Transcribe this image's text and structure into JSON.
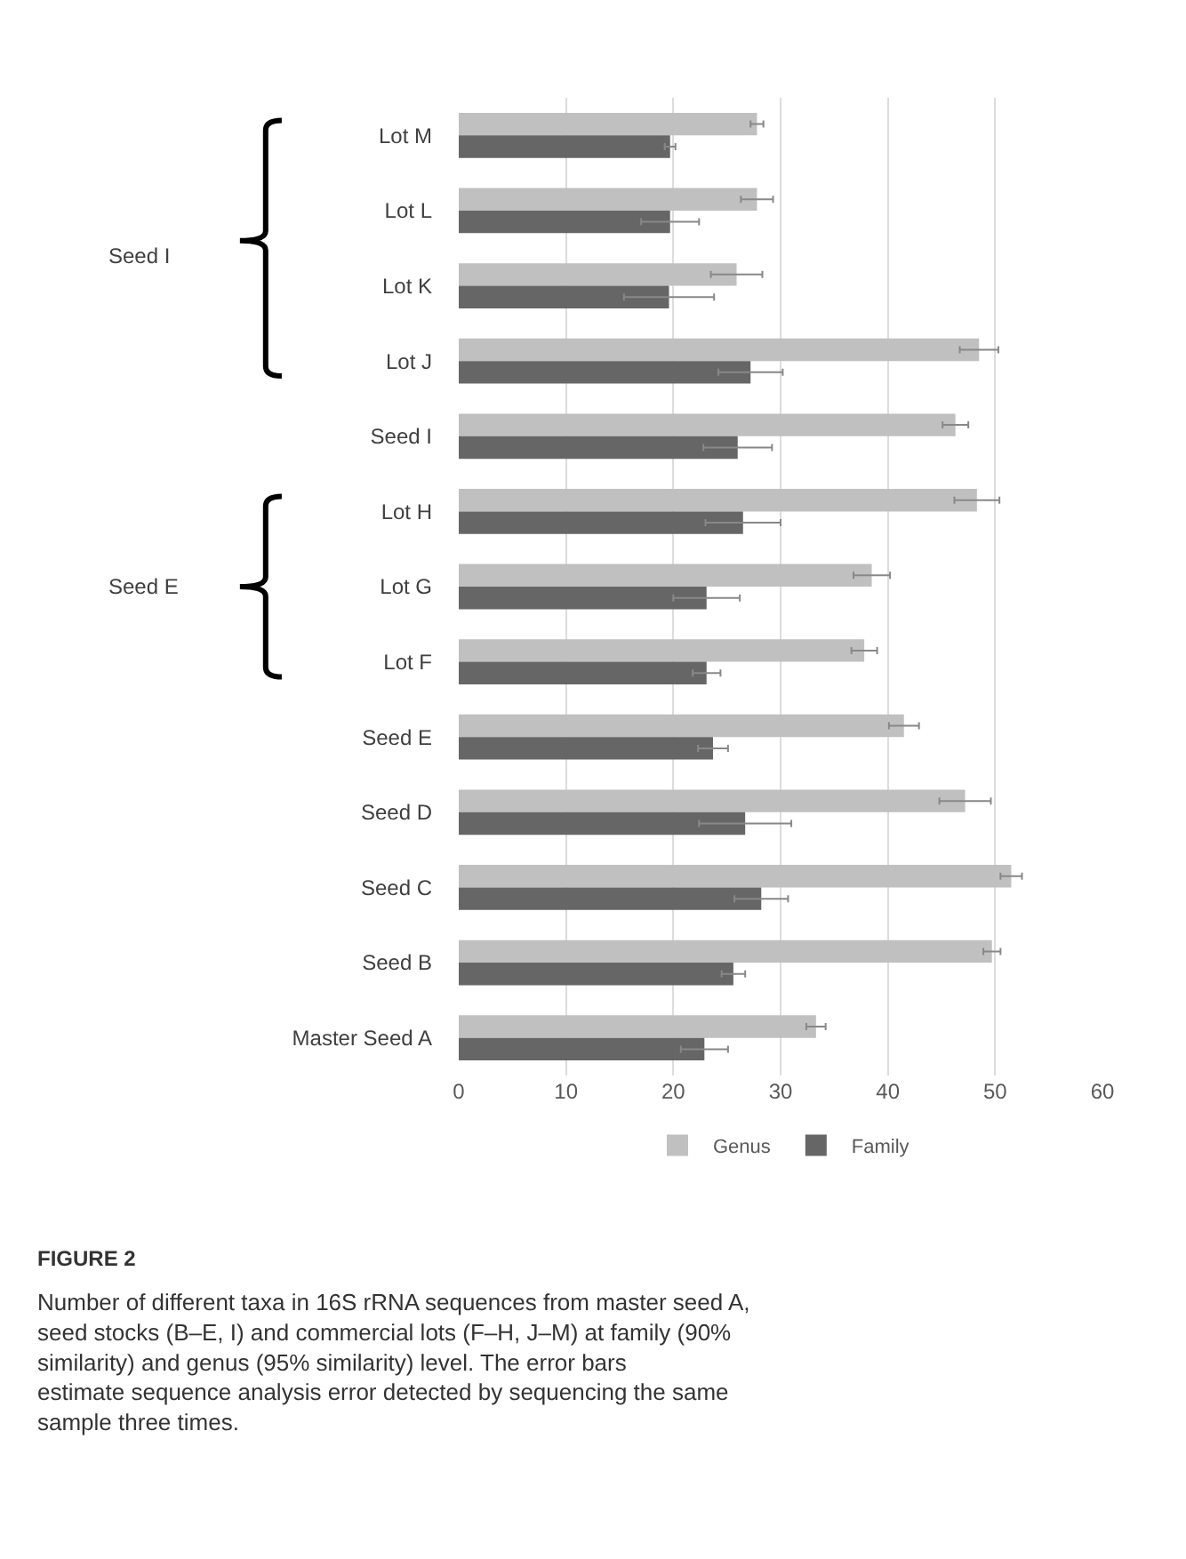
{
  "chart_data": {
    "type": "bar",
    "orientation": "horizontal",
    "categories": [
      "Lot M",
      "Lot L",
      "Lot K",
      "Lot J",
      "Seed I",
      "Lot H",
      "Lot G",
      "Lot F",
      "Seed E",
      "Seed D",
      "Seed C",
      "Seed B",
      "Master Seed A"
    ],
    "series": [
      {
        "name": "Genus",
        "color": "#c0c0c0",
        "values": [
          27.8,
          27.8,
          25.9,
          48.5,
          46.3,
          48.3,
          38.5,
          37.8,
          41.5,
          47.2,
          51.5,
          49.7,
          33.3
        ],
        "errors": [
          0.6,
          1.5,
          2.4,
          1.8,
          1.2,
          2.1,
          1.7,
          1.2,
          1.4,
          2.4,
          1.0,
          0.8,
          0.9
        ]
      },
      {
        "name": "Family",
        "color": "#666666",
        "values": [
          19.7,
          19.7,
          19.6,
          27.2,
          26.0,
          26.5,
          23.1,
          23.1,
          23.7,
          26.7,
          28.2,
          25.6,
          22.9
        ],
        "errors": [
          0.5,
          2.7,
          4.2,
          3.0,
          3.2,
          3.5,
          3.1,
          1.3,
          1.4,
          4.3,
          2.5,
          1.1,
          2.2
        ]
      }
    ],
    "xlim": [
      0,
      60
    ],
    "xticks": [
      0,
      10,
      20,
      30,
      40,
      50,
      60
    ],
    "grid": "x",
    "legend": "bottom",
    "annotations": [
      "Seed I",
      "Seed E",
      "FIGURE 2",
      "Number of different taxa in 16S rRNA sequences from master seed A, seed stocks (B–E, I) and commercial lots (F–H, J–M) at family (90% similarity) and genus (95% similarity) level. The error bars estimate sequence analysis error detected by sequencing the same sample three times."
    ]
  }
}
